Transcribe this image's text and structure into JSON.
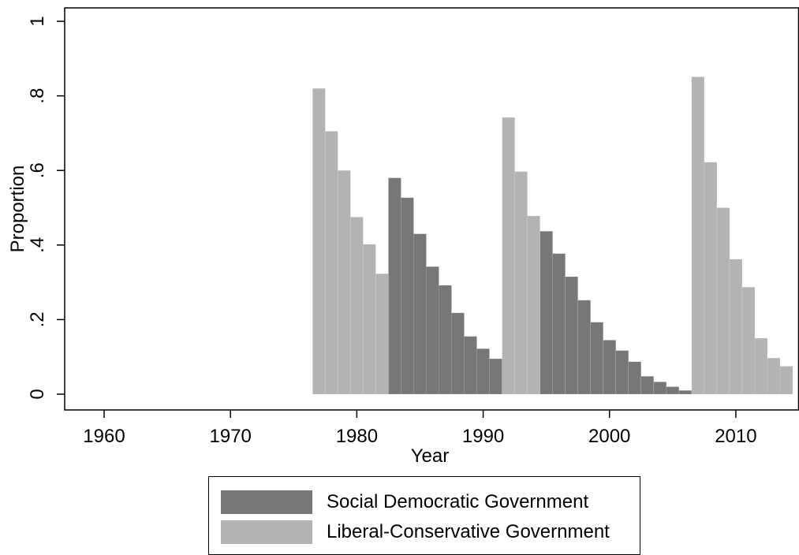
{
  "chart_data": {
    "type": "bar",
    "title": "",
    "xlabel": "Year",
    "ylabel": "Proportion",
    "xlim": [
      1958.5,
      2015
    ],
    "ylim": [
      0,
      1
    ],
    "x_ticks": [
      1960,
      1970,
      1980,
      1990,
      2000,
      2010
    ],
    "x_tick_labels": [
      "1960",
      "1970",
      "1980",
      "1990",
      "2000",
      "2010"
    ],
    "y_ticks": [
      0,
      0.2,
      0.4,
      0.6,
      0.8,
      1
    ],
    "y_tick_labels": [
      "0",
      ".2",
      ".4",
      ".6",
      ".8",
      "1"
    ],
    "grid": false,
    "legend_position": "bottom",
    "series": [
      {
        "name": "Social Democratic Government",
        "color": "#777777",
        "x": [
          1983,
          1984,
          1985,
          1986,
          1987,
          1988,
          1989,
          1990,
          1991,
          1995,
          1996,
          1997,
          1998,
          1999,
          2000,
          2001,
          2002,
          2003,
          2004,
          2005,
          2006
        ],
        "values": [
          0.58,
          0.527,
          0.43,
          0.342,
          0.292,
          0.218,
          0.155,
          0.122,
          0.095,
          0.437,
          0.377,
          0.315,
          0.252,
          0.193,
          0.145,
          0.117,
          0.087,
          0.048,
          0.033,
          0.02,
          0.01
        ]
      },
      {
        "name": "Liberal-Conservative Government",
        "color": "#b3b3b3",
        "x": [
          1977,
          1978,
          1979,
          1980,
          1981,
          1982,
          1992,
          1993,
          1994,
          2007,
          2008,
          2009,
          2010,
          2011,
          2012,
          2013,
          2014
        ],
        "values": [
          0.82,
          0.705,
          0.6,
          0.475,
          0.402,
          0.323,
          0.742,
          0.597,
          0.478,
          0.851,
          0.622,
          0.5,
          0.362,
          0.287,
          0.15,
          0.097,
          0.075
        ]
      }
    ]
  }
}
